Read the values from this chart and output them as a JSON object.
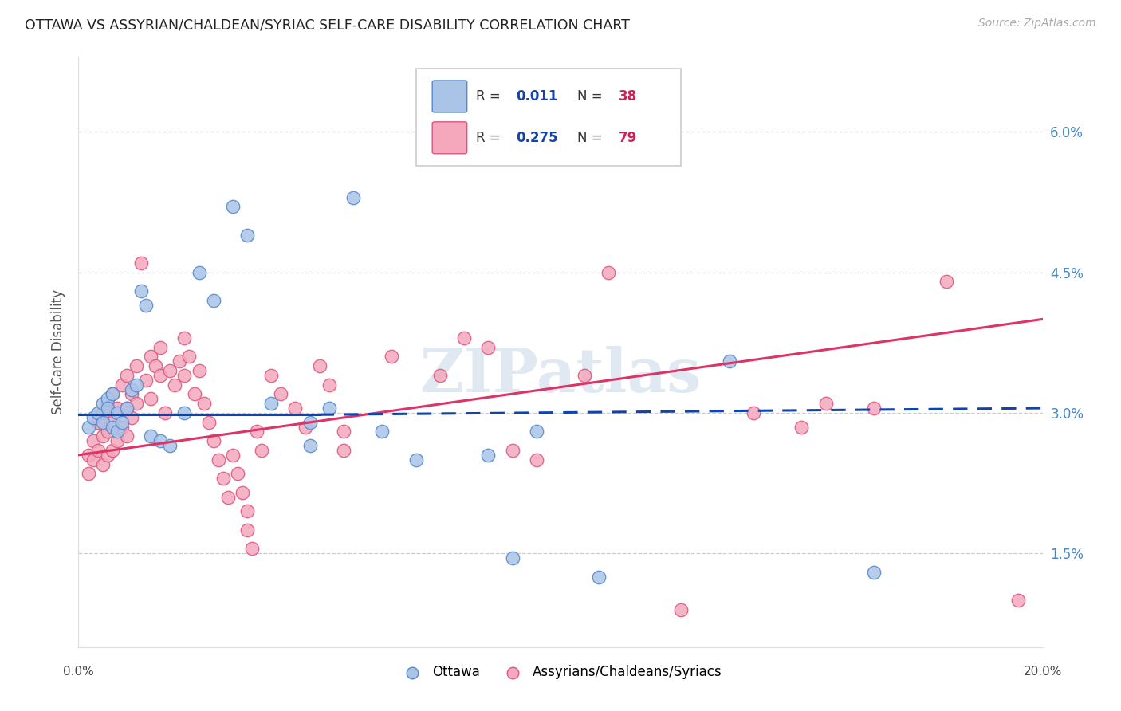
{
  "title": "OTTAWA VS ASSYRIAN/CHALDEAN/SYRIAC SELF-CARE DISABILITY CORRELATION CHART",
  "source": "Source: ZipAtlas.com",
  "ylabel": "Self-Care Disability",
  "ytick_values": [
    1.5,
    3.0,
    4.5,
    6.0
  ],
  "xlim": [
    0.0,
    20.0
  ],
  "ylim": [
    0.5,
    6.8
  ],
  "watermark": "ZIPatlas",
  "blue_color": "#aac4e8",
  "pink_color": "#f5a8bc",
  "blue_edge_color": "#5588cc",
  "pink_edge_color": "#dd5580",
  "blue_line_color": "#1144aa",
  "pink_line_color": "#dd3366",
  "blue_scatter": [
    [
      0.2,
      2.85
    ],
    [
      0.3,
      2.95
    ],
    [
      0.4,
      3.0
    ],
    [
      0.5,
      3.1
    ],
    [
      0.5,
      2.9
    ],
    [
      0.6,
      3.15
    ],
    [
      0.6,
      3.05
    ],
    [
      0.7,
      3.2
    ],
    [
      0.7,
      2.85
    ],
    [
      0.8,
      3.0
    ],
    [
      0.8,
      2.8
    ],
    [
      0.9,
      2.9
    ],
    [
      1.0,
      3.05
    ],
    [
      1.1,
      3.25
    ],
    [
      1.2,
      3.3
    ],
    [
      1.3,
      4.3
    ],
    [
      1.4,
      4.15
    ],
    [
      1.5,
      2.75
    ],
    [
      1.7,
      2.7
    ],
    [
      1.9,
      2.65
    ],
    [
      2.2,
      3.0
    ],
    [
      2.5,
      4.5
    ],
    [
      2.8,
      4.2
    ],
    [
      3.2,
      5.2
    ],
    [
      3.5,
      4.9
    ],
    [
      4.0,
      3.1
    ],
    [
      4.8,
      2.9
    ],
    [
      4.8,
      2.65
    ],
    [
      5.2,
      3.05
    ],
    [
      5.7,
      5.3
    ],
    [
      6.3,
      2.8
    ],
    [
      7.0,
      2.5
    ],
    [
      8.5,
      2.55
    ],
    [
      9.0,
      1.45
    ],
    [
      9.5,
      2.8
    ],
    [
      10.8,
      1.25
    ],
    [
      13.5,
      3.55
    ],
    [
      16.5,
      1.3
    ]
  ],
  "pink_scatter": [
    [
      0.2,
      2.55
    ],
    [
      0.2,
      2.35
    ],
    [
      0.3,
      2.7
    ],
    [
      0.3,
      2.5
    ],
    [
      0.4,
      2.9
    ],
    [
      0.4,
      2.6
    ],
    [
      0.5,
      3.0
    ],
    [
      0.5,
      2.75
    ],
    [
      0.5,
      2.45
    ],
    [
      0.6,
      3.1
    ],
    [
      0.6,
      2.8
    ],
    [
      0.6,
      2.55
    ],
    [
      0.7,
      3.2
    ],
    [
      0.7,
      2.9
    ],
    [
      0.7,
      2.6
    ],
    [
      0.8,
      3.05
    ],
    [
      0.8,
      2.7
    ],
    [
      0.9,
      3.3
    ],
    [
      0.9,
      2.85
    ],
    [
      1.0,
      3.4
    ],
    [
      1.0,
      3.05
    ],
    [
      1.0,
      2.75
    ],
    [
      1.1,
      3.2
    ],
    [
      1.1,
      2.95
    ],
    [
      1.2,
      3.5
    ],
    [
      1.2,
      3.1
    ],
    [
      1.3,
      4.6
    ],
    [
      1.4,
      3.35
    ],
    [
      1.5,
      3.6
    ],
    [
      1.5,
      3.15
    ],
    [
      1.6,
      3.5
    ],
    [
      1.7,
      3.7
    ],
    [
      1.7,
      3.4
    ],
    [
      1.8,
      3.0
    ],
    [
      1.9,
      3.45
    ],
    [
      2.0,
      3.3
    ],
    [
      2.1,
      3.55
    ],
    [
      2.2,
      3.8
    ],
    [
      2.2,
      3.4
    ],
    [
      2.3,
      3.6
    ],
    [
      2.4,
      3.2
    ],
    [
      2.5,
      3.45
    ],
    [
      2.6,
      3.1
    ],
    [
      2.7,
      2.9
    ],
    [
      2.8,
      2.7
    ],
    [
      2.9,
      2.5
    ],
    [
      3.0,
      2.3
    ],
    [
      3.1,
      2.1
    ],
    [
      3.2,
      2.55
    ],
    [
      3.3,
      2.35
    ],
    [
      3.4,
      2.15
    ],
    [
      3.5,
      1.95
    ],
    [
      3.5,
      1.75
    ],
    [
      3.6,
      1.55
    ],
    [
      3.7,
      2.8
    ],
    [
      3.8,
      2.6
    ],
    [
      4.0,
      3.4
    ],
    [
      4.2,
      3.2
    ],
    [
      4.5,
      3.05
    ],
    [
      4.7,
      2.85
    ],
    [
      5.0,
      3.5
    ],
    [
      5.2,
      3.3
    ],
    [
      5.5,
      2.8
    ],
    [
      5.5,
      2.6
    ],
    [
      6.5,
      3.6
    ],
    [
      7.5,
      3.4
    ],
    [
      8.0,
      3.8
    ],
    [
      8.5,
      3.7
    ],
    [
      9.0,
      2.6
    ],
    [
      9.5,
      2.5
    ],
    [
      10.5,
      3.4
    ],
    [
      11.0,
      4.5
    ],
    [
      12.5,
      0.9
    ],
    [
      14.0,
      3.0
    ],
    [
      15.0,
      2.85
    ],
    [
      15.5,
      3.1
    ],
    [
      16.5,
      3.05
    ],
    [
      18.0,
      4.4
    ],
    [
      19.5,
      1.0
    ]
  ],
  "blue_trend_x": [
    0.0,
    5.0,
    20.0
  ],
  "blue_trend_y": [
    2.98,
    2.98,
    3.05
  ],
  "blue_trend_dash_start": 5.0,
  "pink_trend_x": [
    0.0,
    20.0
  ],
  "pink_trend_y": [
    2.55,
    4.0
  ]
}
